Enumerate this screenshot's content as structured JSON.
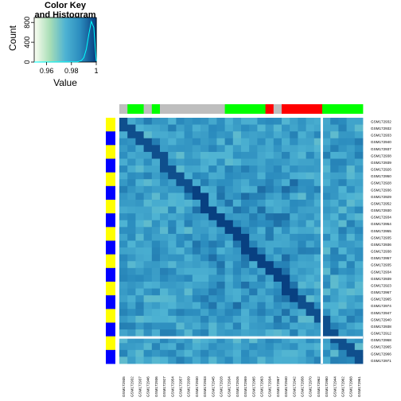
{
  "chart_data": {
    "type": "heatmap",
    "color_key": {
      "title_line1": "Color Key",
      "title_line2": "and Histogram",
      "xlabel": "Value",
      "ylabel": "Count",
      "x_ticks": [
        "0.96",
        "0.98",
        "1"
      ],
      "y_ticks": [
        "0",
        "400",
        "800"
      ],
      "value_range": [
        0.95,
        1.0
      ],
      "count_range": [
        0,
        900
      ],
      "histogram": [
        {
          "value": 0.95,
          "count": 0
        },
        {
          "value": 0.985,
          "count": 5
        },
        {
          "value": 0.988,
          "count": 30
        },
        {
          "value": 0.99,
          "count": 90
        },
        {
          "value": 0.992,
          "count": 260
        },
        {
          "value": 0.994,
          "count": 560
        },
        {
          "value": 0.996,
          "count": 820
        },
        {
          "value": 0.998,
          "count": 700
        },
        {
          "value": 1.0,
          "count": 20
        }
      ]
    },
    "colors": {
      "low": "#f7fcf0",
      "mid1": "#a8ddb5",
      "mid2": "#4eb3d3",
      "mid3": "#2b8cbe",
      "high": "#084081",
      "histogram_line": "#00ffff",
      "separator": "#ffffff",
      "annotation_gray": "#bebebe",
      "annotation_green": "#00ff00",
      "annotation_red": "#ff0000",
      "annotation_blue": "#0000ff",
      "annotation_yellow": "#ffff00"
    },
    "column_annotations": [
      "gray",
      "green",
      "green",
      "gray",
      "green",
      "gray",
      "gray",
      "gray",
      "gray",
      "gray",
      "gray",
      "gray",
      "gray",
      "green",
      "green",
      "green",
      "green",
      "green",
      "red",
      "gray",
      "red",
      "red",
      "red",
      "red",
      "red",
      "green",
      "green",
      "green",
      "green",
      "green"
    ],
    "row_annotations": [
      "yellow",
      "yellow",
      "blue",
      "blue",
      "yellow",
      "yellow",
      "blue",
      "blue",
      "yellow",
      "yellow",
      "blue",
      "blue",
      "yellow",
      "yellow",
      "blue",
      "blue",
      "yellow",
      "yellow",
      "blue",
      "blue",
      "yellow",
      "yellow",
      "blue",
      "blue",
      "yellow",
      "yellow",
      "blue",
      "blue",
      "yellow",
      "yellow",
      "blue",
      "blue",
      "yellow",
      "yellow",
      "blue",
      "blue"
    ],
    "row_labels": [
      "GSM172932",
      "GSM172932",
      "GSM172933",
      "GSM172940",
      "GSM172937",
      "GSM172938",
      "GSM172939",
      "GSM172926",
      "GSM172950",
      "GSM172928",
      "GSM172936",
      "GSM172929",
      "GSM172952",
      "GSM172930",
      "GSM172934",
      "GSM172954",
      "GSM172955",
      "GSM172935",
      "GSM172936",
      "GSM172938",
      "GSM172957",
      "GSM172935",
      "GSM172934",
      "GSM172939",
      "GSM172923",
      "GSM172967",
      "GSM172965",
      "GSM172974",
      "GSM172947",
      "GSM172940",
      "GSM172938",
      "GSM172912",
      "GSM172968",
      "GSM172965",
      "GSM172966",
      "GSM172971"
    ],
    "col_labels": [
      "GSM172935",
      "GSM172932",
      "GSM172937",
      "GSM172946",
      "GSM172936",
      "GSM172927",
      "GSM172954",
      "GSM172957",
      "GSM172939",
      "GSM172930",
      "GSM172933",
      "GSM172945",
      "GSM172928",
      "GSM172934",
      "GSM172926",
      "GSM172959",
      "GSM172965",
      "GSM172963",
      "GSM172934",
      "GSM172967",
      "GSM172940",
      "GSM172942",
      "GSM172958",
      "GSM172970",
      "GSM172962",
      "GSM172980",
      "GSM172944",
      "GSM172962",
      "GSM172968",
      "GSM172961"
    ],
    "separator_row_index": 32,
    "separator_col_index": 24
  }
}
